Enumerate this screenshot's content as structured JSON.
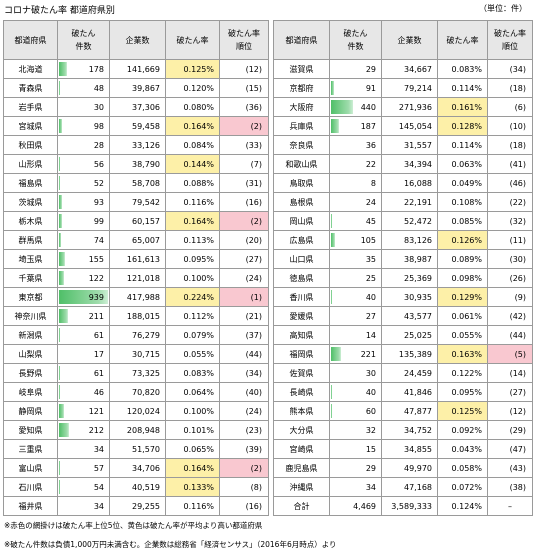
{
  "title": "コロナ破たん率  都道府県別",
  "unit": "（単位：件）",
  "headers": {
    "pref": "都道府県",
    "count_l1": "破たん",
    "count_l2": "件数",
    "ent": "企業数",
    "rate": "破たん率",
    "rank_l1": "破たん率",
    "rank_l2": "順位"
  },
  "bar_max": 939,
  "left_rows": [
    {
      "pref": "北海道",
      "count": "178",
      "ent": "141,669",
      "rate": "0.125%",
      "rank": "(12)",
      "hi": true,
      "top": false
    },
    {
      "pref": "青森県",
      "count": "48",
      "ent": "39,867",
      "rate": "0.120%",
      "rank": "(15)",
      "hi": false,
      "top": false
    },
    {
      "pref": "岩手県",
      "count": "30",
      "ent": "37,306",
      "rate": "0.080%",
      "rank": "(36)",
      "hi": false,
      "top": false
    },
    {
      "pref": "宮城県",
      "count": "98",
      "ent": "59,458",
      "rate": "0.164%",
      "rank": "(2)",
      "hi": true,
      "top": true
    },
    {
      "pref": "秋田県",
      "count": "28",
      "ent": "33,126",
      "rate": "0.084%",
      "rank": "(33)",
      "hi": false,
      "top": false
    },
    {
      "pref": "山形県",
      "count": "56",
      "ent": "38,790",
      "rate": "0.144%",
      "rank": "(7)",
      "hi": true,
      "top": false
    },
    {
      "pref": "福島県",
      "count": "52",
      "ent": "58,708",
      "rate": "0.088%",
      "rank": "(31)",
      "hi": false,
      "top": false
    },
    {
      "pref": "茨城県",
      "count": "93",
      "ent": "79,542",
      "rate": "0.116%",
      "rank": "(16)",
      "hi": false,
      "top": false
    },
    {
      "pref": "栃木県",
      "count": "99",
      "ent": "60,157",
      "rate": "0.164%",
      "rank": "(2)",
      "hi": true,
      "top": true
    },
    {
      "pref": "群馬県",
      "count": "74",
      "ent": "65,007",
      "rate": "0.113%",
      "rank": "(20)",
      "hi": false,
      "top": false
    },
    {
      "pref": "埼玉県",
      "count": "155",
      "ent": "161,613",
      "rate": "0.095%",
      "rank": "(27)",
      "hi": false,
      "top": false
    },
    {
      "pref": "千葉県",
      "count": "122",
      "ent": "121,018",
      "rate": "0.100%",
      "rank": "(24)",
      "hi": false,
      "top": false
    },
    {
      "pref": "東京都",
      "count": "939",
      "ent": "417,988",
      "rate": "0.224%",
      "rank": "(1)",
      "hi": true,
      "top": true
    },
    {
      "pref": "神奈川県",
      "count": "211",
      "ent": "188,015",
      "rate": "0.112%",
      "rank": "(21)",
      "hi": false,
      "top": false
    },
    {
      "pref": "新潟県",
      "count": "61",
      "ent": "76,279",
      "rate": "0.079%",
      "rank": "(37)",
      "hi": false,
      "top": false
    },
    {
      "pref": "山梨県",
      "count": "17",
      "ent": "30,715",
      "rate": "0.055%",
      "rank": "(44)",
      "hi": false,
      "top": false
    },
    {
      "pref": "長野県",
      "count": "61",
      "ent": "73,325",
      "rate": "0.083%",
      "rank": "(34)",
      "hi": false,
      "top": false
    },
    {
      "pref": "岐阜県",
      "count": "46",
      "ent": "70,820",
      "rate": "0.064%",
      "rank": "(40)",
      "hi": false,
      "top": false
    },
    {
      "pref": "静岡県",
      "count": "121",
      "ent": "120,024",
      "rate": "0.100%",
      "rank": "(24)",
      "hi": false,
      "top": false
    },
    {
      "pref": "愛知県",
      "count": "212",
      "ent": "208,948",
      "rate": "0.101%",
      "rank": "(23)",
      "hi": false,
      "top": false
    },
    {
      "pref": "三重県",
      "count": "34",
      "ent": "51,570",
      "rate": "0.065%",
      "rank": "(39)",
      "hi": false,
      "top": false
    },
    {
      "pref": "富山県",
      "count": "57",
      "ent": "34,706",
      "rate": "0.164%",
      "rank": "(2)",
      "hi": true,
      "top": true
    },
    {
      "pref": "石川県",
      "count": "54",
      "ent": "40,519",
      "rate": "0.133%",
      "rank": "(8)",
      "hi": true,
      "top": false
    },
    {
      "pref": "福井県",
      "count": "34",
      "ent": "29,255",
      "rate": "0.116%",
      "rank": "(16)",
      "hi": false,
      "top": false
    }
  ],
  "right_rows": [
    {
      "pref": "滋賀県",
      "count": "29",
      "ent": "34,667",
      "rate": "0.083%",
      "rank": "(34)",
      "hi": false,
      "top": false
    },
    {
      "pref": "京都府",
      "count": "91",
      "ent": "79,214",
      "rate": "0.114%",
      "rank": "(18)",
      "hi": false,
      "top": false
    },
    {
      "pref": "大阪府",
      "count": "440",
      "ent": "271,936",
      "rate": "0.161%",
      "rank": "(6)",
      "hi": true,
      "top": false
    },
    {
      "pref": "兵庫県",
      "count": "187",
      "ent": "145,054",
      "rate": "0.128%",
      "rank": "(10)",
      "hi": true,
      "top": false
    },
    {
      "pref": "奈良県",
      "count": "36",
      "ent": "31,557",
      "rate": "0.114%",
      "rank": "(18)",
      "hi": false,
      "top": false
    },
    {
      "pref": "和歌山県",
      "count": "22",
      "ent": "34,394",
      "rate": "0.063%",
      "rank": "(41)",
      "hi": false,
      "top": false
    },
    {
      "pref": "鳥取県",
      "count": "8",
      "ent": "16,088",
      "rate": "0.049%",
      "rank": "(46)",
      "hi": false,
      "top": false
    },
    {
      "pref": "島根県",
      "count": "24",
      "ent": "22,191",
      "rate": "0.108%",
      "rank": "(22)",
      "hi": false,
      "top": false
    },
    {
      "pref": "岡山県",
      "count": "45",
      "ent": "52,472",
      "rate": "0.085%",
      "rank": "(32)",
      "hi": false,
      "top": false
    },
    {
      "pref": "広島県",
      "count": "105",
      "ent": "83,126",
      "rate": "0.126%",
      "rank": "(11)",
      "hi": true,
      "top": false
    },
    {
      "pref": "山口県",
      "count": "35",
      "ent": "38,987",
      "rate": "0.089%",
      "rank": "(30)",
      "hi": false,
      "top": false
    },
    {
      "pref": "徳島県",
      "count": "25",
      "ent": "25,369",
      "rate": "0.098%",
      "rank": "(26)",
      "hi": false,
      "top": false
    },
    {
      "pref": "香川県",
      "count": "40",
      "ent": "30,935",
      "rate": "0.129%",
      "rank": "(9)",
      "hi": true,
      "top": false
    },
    {
      "pref": "愛媛県",
      "count": "27",
      "ent": "43,577",
      "rate": "0.061%",
      "rank": "(42)",
      "hi": false,
      "top": false
    },
    {
      "pref": "高知県",
      "count": "14",
      "ent": "25,025",
      "rate": "0.055%",
      "rank": "(44)",
      "hi": false,
      "top": false
    },
    {
      "pref": "福岡県",
      "count": "221",
      "ent": "135,389",
      "rate": "0.163%",
      "rank": "(5)",
      "hi": true,
      "top": true
    },
    {
      "pref": "佐賀県",
      "count": "30",
      "ent": "24,459",
      "rate": "0.122%",
      "rank": "(14)",
      "hi": false,
      "top": false
    },
    {
      "pref": "長崎県",
      "count": "40",
      "ent": "41,846",
      "rate": "0.095%",
      "rank": "(27)",
      "hi": false,
      "top": false
    },
    {
      "pref": "熊本県",
      "count": "60",
      "ent": "47,877",
      "rate": "0.125%",
      "rank": "(12)",
      "hi": true,
      "top": false
    },
    {
      "pref": "大分県",
      "count": "32",
      "ent": "34,752",
      "rate": "0.092%",
      "rank": "(29)",
      "hi": false,
      "top": false
    },
    {
      "pref": "宮崎県",
      "count": "15",
      "ent": "34,855",
      "rate": "0.043%",
      "rank": "(47)",
      "hi": false,
      "top": false
    },
    {
      "pref": "鹿児島県",
      "count": "29",
      "ent": "49,970",
      "rate": "0.058%",
      "rank": "(43)",
      "hi": false,
      "top": false
    },
    {
      "pref": "沖縄県",
      "count": "34",
      "ent": "47,168",
      "rate": "0.072%",
      "rank": "(38)",
      "hi": false,
      "top": false
    }
  ],
  "total": {
    "label": "合計",
    "count": "4,469",
    "ent": "3,589,333",
    "rate": "0.124%",
    "rank": "–"
  },
  "notes": [
    "※赤色の網掛けは破たん率上位5位、黄色は破たん率が平均より高い都道府県",
    "※破たん件数は負債1,000万円未満含む。企業数は総務省「経済センサス」（2016年6月時点）より"
  ],
  "colors": {
    "bar": "#4fbf68",
    "highlight": "#fdf0a8",
    "top5": "#f9c8d0",
    "header": "#e7e7e7"
  }
}
